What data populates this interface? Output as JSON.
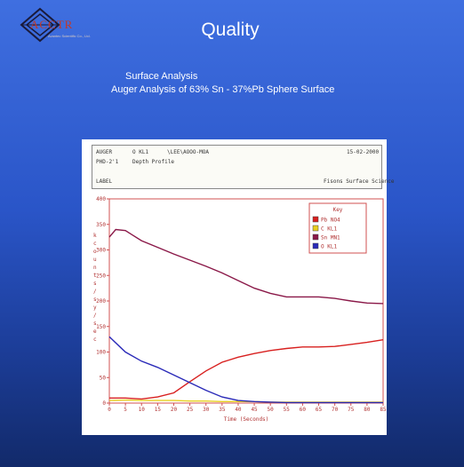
{
  "logo": {
    "brand": "ACCTR",
    "subtitle": "Avantec Scientific Co., Ltd."
  },
  "title": "Quality",
  "subtitle_line1": "Surface Analysis",
  "subtitle_line2": "Auger Analysis of 63% Sn - 37%Pb Sphere Surface",
  "figure_header": {
    "r1c1": "AUGER",
    "r1c2": "O KL1",
    "r1c3": "\\LEE\\AOOO-MOA",
    "r1c4": "15-02-2000",
    "r2c1": "PHD-2'1",
    "r2c2": "Depth Profile",
    "r3c1": "LABEL",
    "r3c4": "Fisons Surface Science"
  },
  "colors": {
    "pb": "#d8201f",
    "c": "#e8d020",
    "sn": "#8a1848",
    "o": "#2a2ab8",
    "axis": "#d05050",
    "text": "#b03030"
  },
  "chart_data": {
    "type": "line",
    "xlabel": "Time (Seconds)",
    "ylabel": "k c o u n t s / s y / s e c",
    "xlim": [
      0,
      85
    ],
    "ylim": [
      0,
      400
    ],
    "xticks": [
      0,
      5,
      10,
      15,
      20,
      25,
      30,
      35,
      40,
      45,
      50,
      55,
      60,
      65,
      70,
      75,
      80,
      85
    ],
    "yticks": [
      0,
      50,
      100,
      150,
      200,
      250,
      300,
      350,
      400
    ],
    "legend": {
      "title": "Key",
      "placement": "top-right"
    },
    "series": [
      {
        "name": "Pb NO4",
        "color": "#d8201f",
        "x": [
          0,
          5,
          10,
          15,
          20,
          25,
          30,
          35,
          40,
          45,
          50,
          55,
          60,
          65,
          70,
          75,
          80,
          85
        ],
        "y": [
          10,
          10,
          8,
          12,
          20,
          42,
          63,
          80,
          90,
          97,
          103,
          107,
          110,
          110,
          111,
          115,
          119,
          124
        ]
      },
      {
        "name": "C KL1",
        "color": "#e8d020",
        "x": [
          0,
          5,
          10,
          15,
          20,
          25,
          30,
          35,
          40,
          45,
          50,
          55,
          60,
          65,
          70,
          75,
          80,
          85
        ],
        "y": [
          5,
          6,
          5,
          5,
          5,
          4,
          4,
          3,
          3,
          3,
          2,
          2,
          2,
          2,
          2,
          2,
          2,
          2
        ]
      },
      {
        "name": "Sn MN1",
        "color": "#8a1848",
        "x": [
          0,
          2,
          5,
          7,
          10,
          15,
          20,
          25,
          30,
          35,
          40,
          45,
          50,
          55,
          60,
          65,
          70,
          75,
          80,
          85
        ],
        "y": [
          325,
          340,
          338,
          330,
          318,
          305,
          292,
          280,
          268,
          255,
          240,
          225,
          215,
          208,
          208,
          208,
          205,
          200,
          196,
          195
        ]
      },
      {
        "name": "O KL1",
        "color": "#2a2ab8",
        "x": [
          0,
          5,
          10,
          15,
          20,
          25,
          30,
          35,
          40,
          45,
          50,
          55,
          60,
          65,
          70,
          75,
          80,
          85
        ],
        "y": [
          130,
          100,
          82,
          70,
          55,
          40,
          25,
          12,
          5,
          3,
          2,
          1,
          1,
          1,
          1,
          1,
          1,
          1
        ]
      }
    ]
  }
}
